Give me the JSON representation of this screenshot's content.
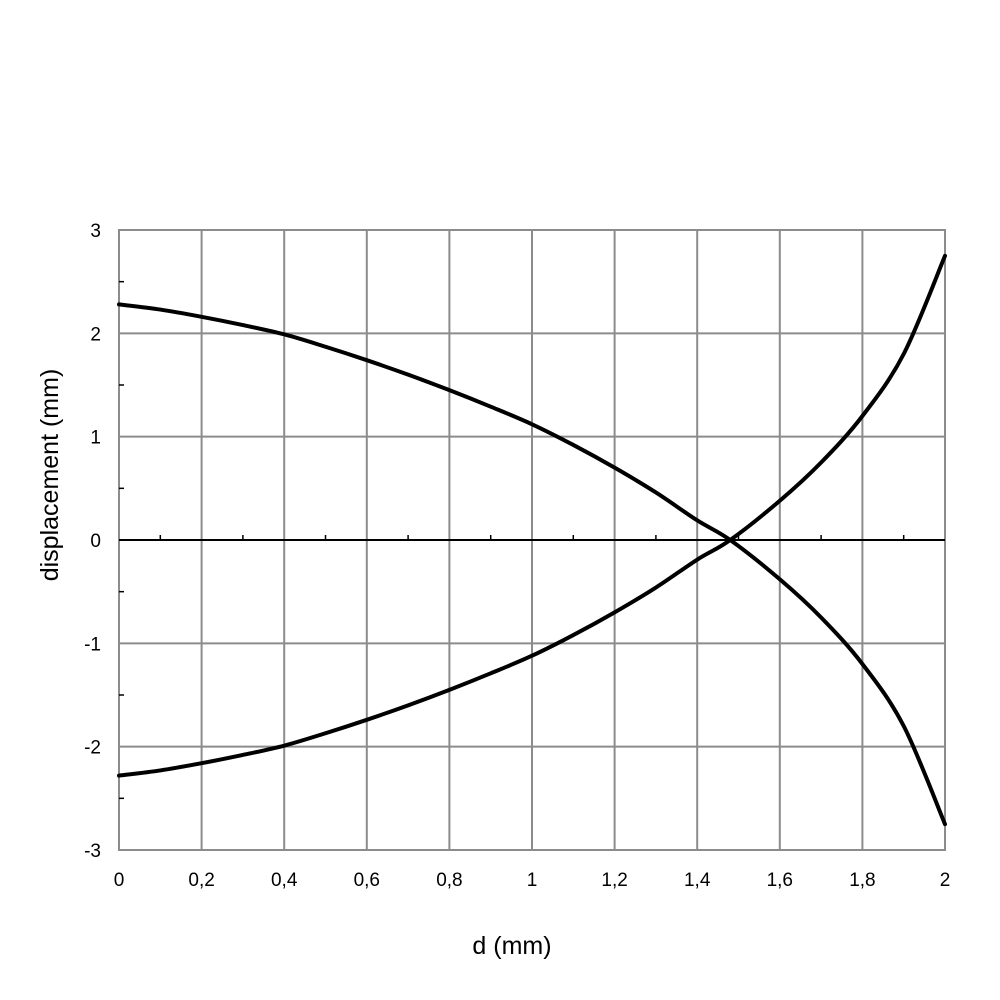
{
  "chart_data": {
    "type": "line",
    "title": "",
    "xlabel": "d (mm)",
    "ylabel": "displacement (mm)",
    "xlim": [
      0,
      2
    ],
    "ylim": [
      -3,
      3
    ],
    "x_ticks": [
      "0",
      "0,2",
      "0,4",
      "0,6",
      "0,8",
      "1",
      "1,2",
      "1,4",
      "1,6",
      "1,8",
      "2"
    ],
    "y_ticks": [
      "3",
      "2",
      "1",
      "0",
      "-1",
      "-2",
      "-3"
    ],
    "grid": true,
    "legend": "none",
    "series": [
      {
        "color": "#000000",
        "x": [
          0,
          0.1,
          0.2,
          0.3,
          0.4,
          0.5,
          0.6,
          0.7,
          0.8,
          0.9,
          1.0,
          1.1,
          1.2,
          1.3,
          1.4,
          1.48,
          1.6,
          1.7,
          1.8,
          1.9,
          2.0
        ],
        "y": [
          2.28,
          2.23,
          2.16,
          2.08,
          1.99,
          1.87,
          1.74,
          1.6,
          1.45,
          1.29,
          1.12,
          0.92,
          0.7,
          0.46,
          0.19,
          0.0,
          -0.38,
          -0.75,
          -1.2,
          -1.8,
          -2.75
        ]
      },
      {
        "color": "#000000",
        "x": [
          0,
          0.1,
          0.2,
          0.3,
          0.4,
          0.5,
          0.6,
          0.7,
          0.8,
          0.9,
          1.0,
          1.1,
          1.2,
          1.3,
          1.4,
          1.48,
          1.6,
          1.7,
          1.8,
          1.9,
          2.0
        ],
        "y": [
          -2.28,
          -2.23,
          -2.16,
          -2.08,
          -1.99,
          -1.87,
          -1.74,
          -1.6,
          -1.45,
          -1.29,
          -1.12,
          -0.92,
          -0.7,
          -0.46,
          -0.19,
          0.0,
          0.38,
          0.75,
          1.2,
          1.8,
          2.75
        ]
      }
    ]
  }
}
